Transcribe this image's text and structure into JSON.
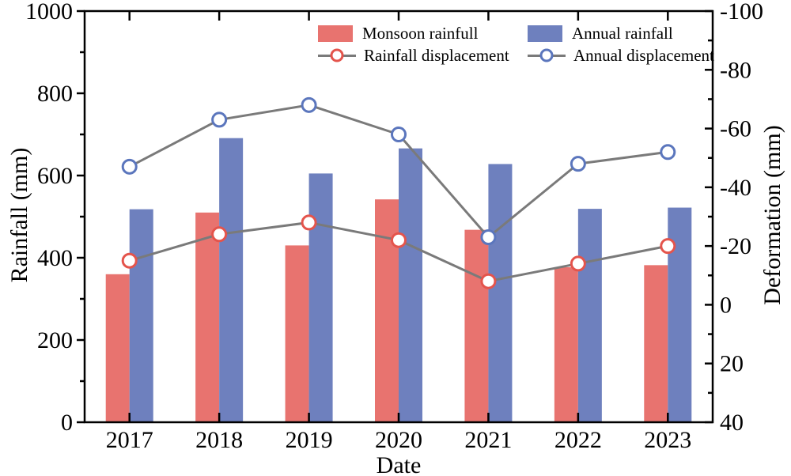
{
  "chart_data": {
    "type": "bar",
    "title": "",
    "xlabel": "Date",
    "ylabel_left": "Rainfall (mm)",
    "ylabel_right": "Deformation (mm)",
    "categories": [
      "2017",
      "2018",
      "2019",
      "2020",
      "2021",
      "2022",
      "2023"
    ],
    "series": [
      {
        "name": "Monsoon rainfull",
        "kind": "bar",
        "axis": "left",
        "color": "#e8736f",
        "values": [
          360,
          510,
          430,
          542,
          468,
          377,
          382
        ]
      },
      {
        "name": "Annual rainfall",
        "kind": "bar",
        "axis": "left",
        "color": "#6e80be",
        "values": [
          518,
          691,
          605,
          666,
          628,
          519,
          522
        ]
      },
      {
        "name": "Rainfall displacement",
        "kind": "line",
        "axis": "right",
        "color": "#e4544c",
        "values": [
          -15,
          -24,
          -28,
          -22,
          -8,
          -14,
          -20
        ]
      },
      {
        "name": "Annual displacement",
        "kind": "line",
        "axis": "right",
        "color": "#5b76bd",
        "values": [
          -47,
          -63,
          -68,
          -58,
          -23,
          -48,
          -52
        ]
      }
    ],
    "ylim_left": [
      0,
      1000
    ],
    "yticks_left": [
      0,
      200,
      400,
      600,
      800,
      1000
    ],
    "yticks_minor_left": [
      100,
      300,
      500,
      700,
      900
    ],
    "ylim_right": [
      -100,
      40
    ],
    "right_axis_inverted": true,
    "yticks_right": [
      -100,
      -80,
      -60,
      -40,
      -20,
      0,
      20,
      40
    ],
    "yticks_minor_right": [
      -90,
      -70,
      -50,
      -30,
      -10,
      10,
      30
    ],
    "line_color": "#7a7a7a",
    "marker_fill": "#ffffff",
    "axis_color": "#000000",
    "grid": false,
    "legend_position": "top-center-inside"
  }
}
